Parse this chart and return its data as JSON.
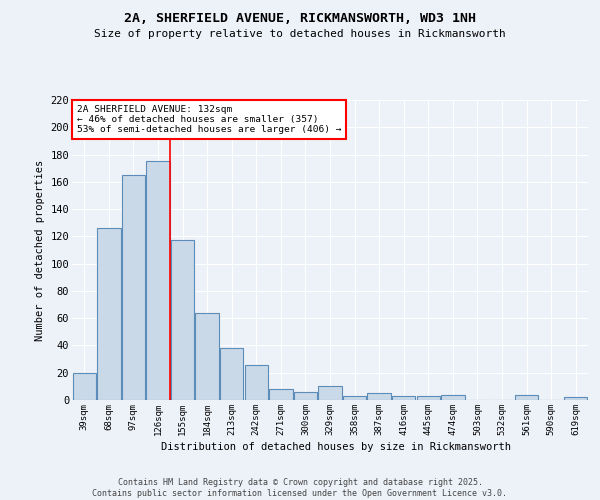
{
  "title_line1": "2A, SHERFIELD AVENUE, RICKMANSWORTH, WD3 1NH",
  "title_line2": "Size of property relative to detached houses in Rickmansworth",
  "xlabel": "Distribution of detached houses by size in Rickmansworth",
  "ylabel": "Number of detached properties",
  "categories": [
    "39sqm",
    "68sqm",
    "97sqm",
    "126sqm",
    "155sqm",
    "184sqm",
    "213sqm",
    "242sqm",
    "271sqm",
    "300sqm",
    "329sqm",
    "358sqm",
    "387sqm",
    "416sqm",
    "445sqm",
    "474sqm",
    "503sqm",
    "532sqm",
    "561sqm",
    "590sqm",
    "619sqm"
  ],
  "values": [
    20,
    126,
    165,
    175,
    117,
    64,
    38,
    26,
    8,
    6,
    10,
    3,
    5,
    3,
    3,
    4,
    0,
    0,
    4,
    0,
    2
  ],
  "bar_color": "#c9d9e8",
  "bar_edge_color": "#5b8db8",
  "vline_color": "red",
  "vline_position": 3.5,
  "ylim": [
    0,
    220
  ],
  "yticks": [
    0,
    20,
    40,
    60,
    80,
    100,
    120,
    140,
    160,
    180,
    200,
    220
  ],
  "annotation_text": "2A SHERFIELD AVENUE: 132sqm\n← 46% of detached houses are smaller (357)\n53% of semi-detached houses are larger (406) →",
  "annotation_box_color": "white",
  "annotation_box_edge_color": "red",
  "bg_color": "#edf1f8",
  "grid_color": "white",
  "footer_line1": "Contains HM Land Registry data © Crown copyright and database right 2025.",
  "footer_line2": "Contains public sector information licensed under the Open Government Licence v3.0."
}
